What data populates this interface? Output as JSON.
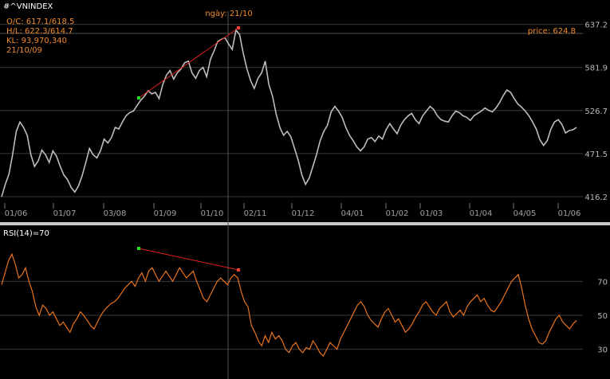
{
  "chart_data": [
    {
      "type": "line",
      "title": "#^VNINDEX",
      "info": {
        "oc": "O/C: 617.1/618.5",
        "hl": "H/L: 622.3/614.7",
        "kl": "KL: 93,970,340",
        "date": "21/10/09"
      },
      "crosshair_date_label": "ngày: 21/10",
      "price_label": "price: 624.8",
      "y_ticks": [
        416.2,
        471.5,
        526.7,
        581.9,
        637.2
      ],
      "ylim": [
        405,
        648
      ],
      "x_ticks": [
        "01/06",
        "01/07",
        "03/08",
        "01/09",
        "01/10",
        "02/11",
        "01/12",
        "04/01",
        "01/02",
        "01/03",
        "01/04",
        "04/05",
        "01/06"
      ],
      "series": [
        {
          "values": [
            416,
            432,
            445,
            470,
            500,
            512,
            505,
            495,
            470,
            455,
            462,
            476,
            470,
            460,
            475,
            468,
            455,
            444,
            438,
            428,
            422,
            430,
            443,
            460,
            478,
            470,
            466,
            475,
            490,
            485,
            492,
            505,
            503,
            512,
            520,
            524,
            526,
            533,
            540,
            545,
            552,
            548,
            550,
            542,
            560,
            572,
            578,
            567,
            575,
            580,
            588,
            590,
            575,
            568,
            578,
            582,
            570,
            592,
            603,
            615,
            618,
            620,
            612,
            605,
            630,
            624,
            600,
            580,
            565,
            555,
            568,
            575,
            590,
            560,
            545,
            522,
            505,
            495,
            500,
            493,
            478,
            463,
            444,
            432,
            440,
            455,
            470,
            488,
            500,
            508,
            525,
            532,
            526,
            518,
            505,
            495,
            488,
            480,
            475,
            480,
            490,
            492,
            487,
            494,
            490,
            502,
            510,
            503,
            497,
            508,
            515,
            520,
            523,
            515,
            510,
            520,
            526,
            532,
            528,
            520,
            515,
            513,
            512,
            520,
            526,
            524,
            520,
            518,
            514,
            520,
            523,
            526,
            530,
            527,
            525,
            530,
            537,
            546,
            553,
            550,
            542,
            535,
            531,
            526,
            520,
            512,
            503,
            489,
            482,
            488,
            503,
            512,
            515,
            509,
            498,
            501,
            502,
            505
          ]
        }
      ]
    },
    {
      "type": "line",
      "title": "RSI(14)=70",
      "y_ticks": [
        30,
        50,
        70
      ],
      "ylim": [
        20,
        95
      ],
      "series": [
        {
          "values": [
            68,
            75,
            82,
            86,
            80,
            72,
            74,
            78,
            70,
            64,
            55,
            50,
            56,
            54,
            50,
            52,
            48,
            44,
            46,
            43,
            40,
            45,
            48,
            52,
            50,
            47,
            44,
            42,
            46,
            50,
            53,
            55,
            57,
            58,
            60,
            63,
            66,
            68,
            70,
            67,
            72,
            75,
            70,
            76,
            78,
            74,
            70,
            73,
            76,
            73,
            70,
            74,
            78,
            75,
            72,
            74,
            76,
            70,
            65,
            60,
            58,
            62,
            66,
            70,
            72,
            70,
            68,
            72,
            74,
            72,
            64,
            58,
            55,
            44,
            40,
            35,
            32,
            38,
            34,
            40,
            36,
            38,
            35,
            30,
            28,
            32,
            34,
            30,
            28,
            31,
            30,
            35,
            32,
            28,
            26,
            30,
            34,
            32,
            30,
            36,
            40,
            44,
            48,
            52,
            56,
            58,
            55,
            50,
            47,
            45,
            43,
            48,
            52,
            54,
            50,
            46,
            48,
            44,
            40,
            42,
            45,
            49,
            52,
            56,
            58,
            55,
            52,
            50,
            54,
            56,
            58,
            52,
            49,
            51,
            53,
            50,
            55,
            58,
            60,
            62,
            58,
            60,
            56,
            53,
            52,
            55,
            58,
            62,
            66,
            70,
            72,
            74,
            66,
            56,
            48,
            42,
            38,
            34,
            33,
            35,
            40,
            44,
            48,
            50,
            46,
            44,
            42,
            45,
            47
          ]
        }
      ]
    }
  ]
}
